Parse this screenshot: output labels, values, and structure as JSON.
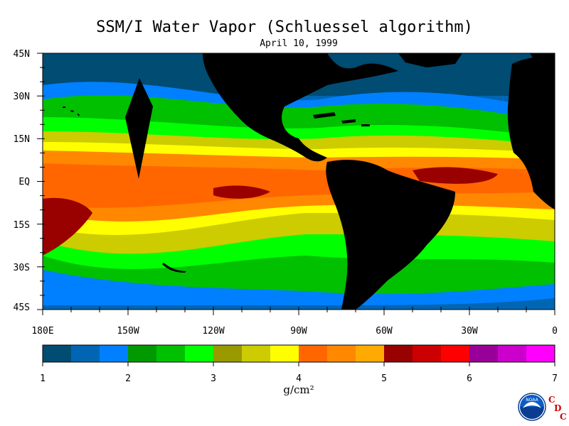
{
  "title": "SSM/I Water Vapor (Schluessel algorithm)",
  "date": "April 10, 1999",
  "map": {
    "lat_labels": [
      "45N",
      "30N",
      "15N",
      "EQ",
      "15S",
      "30S",
      "45S"
    ],
    "lon_labels": [
      "180E",
      "150W",
      "120W",
      "90W",
      "60W",
      "30W",
      "0"
    ]
  },
  "colorbar": {
    "tick_labels": [
      "1",
      "2",
      "3",
      "4",
      "5",
      "6",
      "7"
    ],
    "unit": "g/cm²",
    "colors": [
      "#004c73",
      "#0066b3",
      "#0080ff",
      "#009900",
      "#00c000",
      "#00ff00",
      "#999900",
      "#cccc00",
      "#ffff00",
      "#ff6600",
      "#ff8800",
      "#ffaa00",
      "#990000",
      "#cc0000",
      "#ff0000",
      "#990099",
      "#cc00cc",
      "#ff00ff"
    ]
  },
  "logos": {
    "noaa": "NOAA",
    "cdc_letters": [
      "C",
      "D",
      "C"
    ]
  }
}
